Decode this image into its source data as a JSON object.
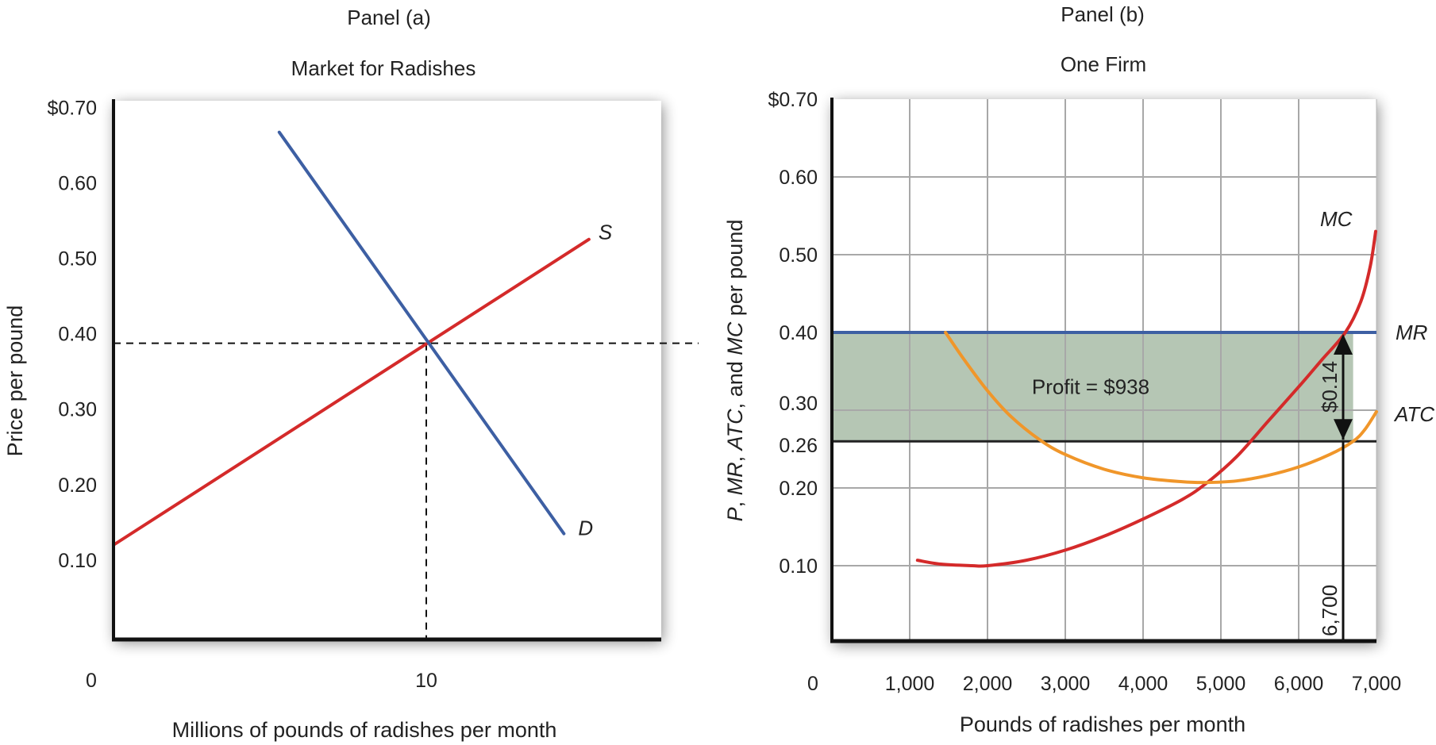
{
  "chart_data": [
    {
      "type": "line",
      "panel_label": "Panel (a)",
      "title": "Market for Radishes",
      "xlabel": "Millions of pounds of radishes per month",
      "ylabel": "Price per pound",
      "xlim": [
        0,
        18
      ],
      "ylim": [
        0,
        0.7
      ],
      "x_ticks": [
        {
          "value": 0,
          "label": "0"
        },
        {
          "value": 10,
          "label": "10"
        }
      ],
      "y_ticks": [
        {
          "value": 0.7,
          "label": "$0.70"
        },
        {
          "value": 0.6,
          "label": "0.60"
        },
        {
          "value": 0.5,
          "label": "0.50"
        },
        {
          "value": 0.4,
          "label": "0.40"
        },
        {
          "value": 0.3,
          "label": "0.30"
        },
        {
          "value": 0.2,
          "label": "0.20"
        },
        {
          "value": 0.1,
          "label": "0.10"
        }
      ],
      "grid": false,
      "series": [
        {
          "name": "S",
          "label": "S",
          "color": "#d42a2a",
          "points": [
            [
              0,
              0.12
            ],
            [
              15.2,
              0.525
            ]
          ]
        },
        {
          "name": "D",
          "label": "D",
          "color": "#3d5fa3",
          "points": [
            [
              5.3,
              0.667
            ],
            [
              14.4,
              0.135
            ]
          ]
        }
      ],
      "equilibrium": {
        "quantity": 10,
        "price": 0.4
      },
      "reference_lines": [
        {
          "type": "horizontal",
          "value": 0.4,
          "style": "dashed",
          "extends_past_plot": true
        },
        {
          "type": "vertical",
          "value": 10,
          "style": "dashed"
        }
      ]
    },
    {
      "type": "line",
      "panel_label": "Panel (b)",
      "title": "One Firm",
      "xlabel": "Pounds of radishes per month",
      "ylabel_parts": [
        {
          "text": "P",
          "italic": true
        },
        {
          "text": ", ",
          "italic": false
        },
        {
          "text": "MR",
          "italic": true
        },
        {
          "text": ", ",
          "italic": false
        },
        {
          "text": "ATC",
          "italic": true
        },
        {
          "text": ", and ",
          "italic": false
        },
        {
          "text": "MC",
          "italic": true
        },
        {
          "text": " per pound",
          "italic": false
        }
      ],
      "xlim": [
        0,
        7000
      ],
      "ylim": [
        0,
        0.7
      ],
      "x_ticks": [
        {
          "value": 0,
          "label": "0"
        },
        {
          "value": 1000,
          "label": "1,000"
        },
        {
          "value": 2000,
          "label": "2,000"
        },
        {
          "value": 3000,
          "label": "3,000"
        },
        {
          "value": 4000,
          "label": "4,000"
        },
        {
          "value": 5000,
          "label": "5,000"
        },
        {
          "value": 6000,
          "label": "6,000"
        },
        {
          "value": 7000,
          "label": "7,000"
        }
      ],
      "y_ticks": [
        {
          "value": 0.7,
          "label": "$0.70"
        },
        {
          "value": 0.6,
          "label": "0.60"
        },
        {
          "value": 0.5,
          "label": "0.50"
        },
        {
          "value": 0.4,
          "label": "0.40"
        },
        {
          "value": 0.3,
          "label": "0.30"
        },
        {
          "value": 0.26,
          "label": "0.26"
        },
        {
          "value": 0.2,
          "label": "0.20"
        },
        {
          "value": 0.1,
          "label": "0.10"
        }
      ],
      "grid": true,
      "grid_x": [
        1000,
        2000,
        3000,
        4000,
        5000,
        6000
      ],
      "grid_y": [
        0.1,
        0.2,
        0.3,
        0.5,
        0.6
      ],
      "series": [
        {
          "name": "MR",
          "label": "MR",
          "color": "#3d5fa3",
          "points": [
            [
              0,
              0.4
            ],
            [
              7000,
              0.4
            ]
          ]
        },
        {
          "name": "MC",
          "label": "MC",
          "color": "#d42a2a",
          "points": [
            [
              1100,
              0.107
            ],
            [
              1400,
              0.102
            ],
            [
              1800,
              0.1
            ],
            [
              2000,
              0.1
            ],
            [
              2500,
              0.107
            ],
            [
              3000,
              0.12
            ],
            [
              3500,
              0.138
            ],
            [
              4000,
              0.16
            ],
            [
              4500,
              0.185
            ],
            [
              4800,
              0.205
            ],
            [
              5200,
              0.24
            ],
            [
              5600,
              0.285
            ],
            [
              6000,
              0.33
            ],
            [
              6300,
              0.365
            ],
            [
              6600,
              0.4
            ],
            [
              6800,
              0.44
            ],
            [
              6920,
              0.485
            ],
            [
              6990,
              0.53
            ]
          ]
        },
        {
          "name": "ATC",
          "label": "ATC",
          "color": "#f0962a",
          "points": [
            [
              1460,
              0.4
            ],
            [
              1700,
              0.365
            ],
            [
              2000,
              0.325
            ],
            [
              2300,
              0.292
            ],
            [
              2670,
              0.262
            ],
            [
              3000,
              0.243
            ],
            [
              3500,
              0.224
            ],
            [
              4000,
              0.213
            ],
            [
              4500,
              0.208
            ],
            [
              4800,
              0.207
            ],
            [
              5200,
              0.209
            ],
            [
              5600,
              0.216
            ],
            [
              6000,
              0.227
            ],
            [
              6400,
              0.243
            ],
            [
              6700,
              0.26
            ],
            [
              6850,
              0.275
            ],
            [
              7000,
              0.298
            ]
          ]
        }
      ],
      "cost_line": {
        "value": 0.26,
        "color": "#222222"
      },
      "profit_area": {
        "x_range": [
          0,
          6700
        ],
        "y_range": [
          0.26,
          0.4
        ],
        "color": "#b5c6b4",
        "label": "Profit = $938"
      },
      "profit_margin_arrow": {
        "quantity": 6700,
        "from": 0.26,
        "to": 0.4,
        "label": "$0.14"
      },
      "output_marker": {
        "quantity": 6700,
        "label": "6,700"
      }
    }
  ]
}
